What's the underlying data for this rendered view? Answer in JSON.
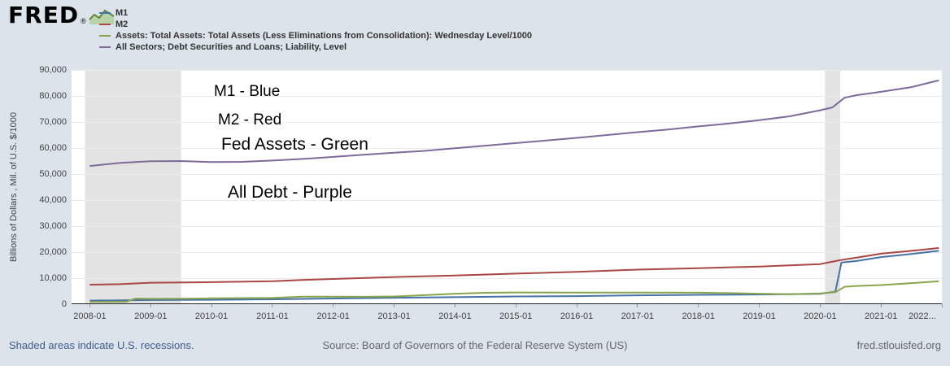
{
  "header": {
    "logo_text": "FRED",
    "logo_reg": "®"
  },
  "footer": {
    "recession_note": "Shaded areas indicate U.S. recessions.",
    "source": "Source: Board of Governors of the Federal Reserve System (US)",
    "site": "fred.stlouisfed.org"
  },
  "colors": {
    "background": "#dce3ea",
    "plot_background": "#ffffff",
    "recession_band": "#e3e3e3",
    "gridline": "#ededed",
    "axis": "#222222",
    "link": "#3f5c8c",
    "muted_text": "#666666"
  },
  "chart_data": {
    "type": "line",
    "title": "",
    "xlabel": "",
    "ylabel": "Billions of Dollars , Mil. of U.S. $/1000",
    "legend_position": "top-left",
    "grid": true,
    "x_range": [
      2007.7,
      2022.0
    ],
    "y_range": [
      0,
      90000
    ],
    "y_ticks": [
      0,
      10000,
      20000,
      30000,
      40000,
      50000,
      60000,
      70000,
      80000,
      90000
    ],
    "y_tick_labels": [
      "0",
      "10,000",
      "20,000",
      "30,000",
      "40,000",
      "50,000",
      "60,000",
      "70,000",
      "80,000",
      "90,000"
    ],
    "x_ticks": [
      2008,
      2009,
      2010,
      2011,
      2012,
      2013,
      2014,
      2015,
      2016,
      2017,
      2018,
      2019,
      2020,
      2021,
      2022
    ],
    "x_tick_labels": [
      "2008-01",
      "2009-01",
      "2010-01",
      "2011-01",
      "2012-01",
      "2013-01",
      "2014-01",
      "2015-01",
      "2016-01",
      "2017-01",
      "2018-01",
      "2019-01",
      "2020-01",
      "2021-01",
      "2022..."
    ],
    "recession_bands": [
      [
        2007.92,
        2009.5
      ],
      [
        2020.08,
        2020.33
      ]
    ],
    "series": [
      {
        "id": "m1",
        "legend_label": "M1",
        "color": "#4572a7",
        "points": [
          [
            2008,
            1390
          ],
          [
            2009,
            1600
          ],
          [
            2010,
            1700
          ],
          [
            2011,
            1860
          ],
          [
            2012,
            2200
          ],
          [
            2013,
            2460
          ],
          [
            2014,
            2700
          ],
          [
            2015,
            2960
          ],
          [
            2016,
            3100
          ],
          [
            2017,
            3400
          ],
          [
            2018,
            3600
          ],
          [
            2019,
            3720
          ],
          [
            2020,
            3980
          ],
          [
            2020.25,
            4800
          ],
          [
            2020.35,
            16000
          ],
          [
            2020.6,
            16600
          ],
          [
            2021,
            18100
          ],
          [
            2021.5,
            19300
          ],
          [
            2021.95,
            20500
          ]
        ]
      },
      {
        "id": "m2",
        "legend_label": "M2",
        "color": "#aa4643",
        "points": [
          [
            2008,
            7490
          ],
          [
            2008.5,
            7700
          ],
          [
            2009,
            8250
          ],
          [
            2010,
            8480
          ],
          [
            2011,
            8820
          ],
          [
            2011.6,
            9400
          ],
          [
            2012,
            9700
          ],
          [
            2013,
            10440
          ],
          [
            2014,
            11020
          ],
          [
            2015,
            11760
          ],
          [
            2016,
            12440
          ],
          [
            2017,
            13280
          ],
          [
            2018,
            13850
          ],
          [
            2019,
            14440
          ],
          [
            2019.5,
            14930
          ],
          [
            2020,
            15420
          ],
          [
            2020.35,
            17000
          ],
          [
            2020.6,
            17900
          ],
          [
            2021,
            19400
          ],
          [
            2021.5,
            20500
          ],
          [
            2021.95,
            21600
          ]
        ]
      },
      {
        "id": "fed-assets",
        "legend_label": "Assets: Total Assets: Total Assets (Less Eliminations from Consolidation): Wednesday Level/1000",
        "color": "#89a54e",
        "points": [
          [
            2008,
            900
          ],
          [
            2008.6,
            940
          ],
          [
            2008.75,
            2150
          ],
          [
            2009,
            2070
          ],
          [
            2009.5,
            2080
          ],
          [
            2010,
            2260
          ],
          [
            2010.5,
            2330
          ],
          [
            2011,
            2430
          ],
          [
            2011.5,
            2860
          ],
          [
            2012,
            2920
          ],
          [
            2012.5,
            2850
          ],
          [
            2013,
            2980
          ],
          [
            2013.5,
            3480
          ],
          [
            2014,
            4030
          ],
          [
            2014.5,
            4380
          ],
          [
            2015,
            4500
          ],
          [
            2016,
            4450
          ],
          [
            2017,
            4450
          ],
          [
            2018,
            4410
          ],
          [
            2018.5,
            4260
          ],
          [
            2019,
            4040
          ],
          [
            2019.5,
            3810
          ],
          [
            2019.85,
            4050
          ],
          [
            2020,
            4170
          ],
          [
            2020.25,
            4600
          ],
          [
            2020.4,
            6700
          ],
          [
            2020.6,
            7010
          ],
          [
            2021,
            7330
          ],
          [
            2021.5,
            8100
          ],
          [
            2021.95,
            8800
          ]
        ]
      },
      {
        "id": "all-debt",
        "legend_label": "All Sectors; Debt Securities and Loans; Liability, Level",
        "color": "#80699b",
        "points": [
          [
            2008,
            53100
          ],
          [
            2008.5,
            54300
          ],
          [
            2009,
            54900
          ],
          [
            2009.5,
            55000
          ],
          [
            2010,
            54600
          ],
          [
            2010.5,
            54700
          ],
          [
            2011,
            55200
          ],
          [
            2011.5,
            55800
          ],
          [
            2012,
            56600
          ],
          [
            2012.5,
            57400
          ],
          [
            2013,
            58200
          ],
          [
            2013.5,
            58900
          ],
          [
            2014,
            59900
          ],
          [
            2014.5,
            60900
          ],
          [
            2015,
            61900
          ],
          [
            2015.5,
            62900
          ],
          [
            2016,
            63900
          ],
          [
            2016.5,
            65000
          ],
          [
            2017,
            66100
          ],
          [
            2017.5,
            67100
          ],
          [
            2018,
            68300
          ],
          [
            2018.5,
            69400
          ],
          [
            2019,
            70700
          ],
          [
            2019.5,
            72200
          ],
          [
            2020,
            74500
          ],
          [
            2020.2,
            75600
          ],
          [
            2020.4,
            79300
          ],
          [
            2020.6,
            80300
          ],
          [
            2021,
            81600
          ],
          [
            2021.5,
            83400
          ],
          [
            2021.95,
            86000
          ]
        ]
      }
    ],
    "annotations": [
      {
        "text": "M1 - Blue",
        "x": 175,
        "y": 32,
        "size": 19
      },
      {
        "text": "M2 - Red",
        "x": 180,
        "y": 67,
        "size": 19
      },
      {
        "text": "Fed Assets - Green",
        "x": 184,
        "y": 98,
        "size": 21
      },
      {
        "text": "All Debt - Purple",
        "x": 192,
        "y": 157,
        "size": 21
      }
    ]
  }
}
